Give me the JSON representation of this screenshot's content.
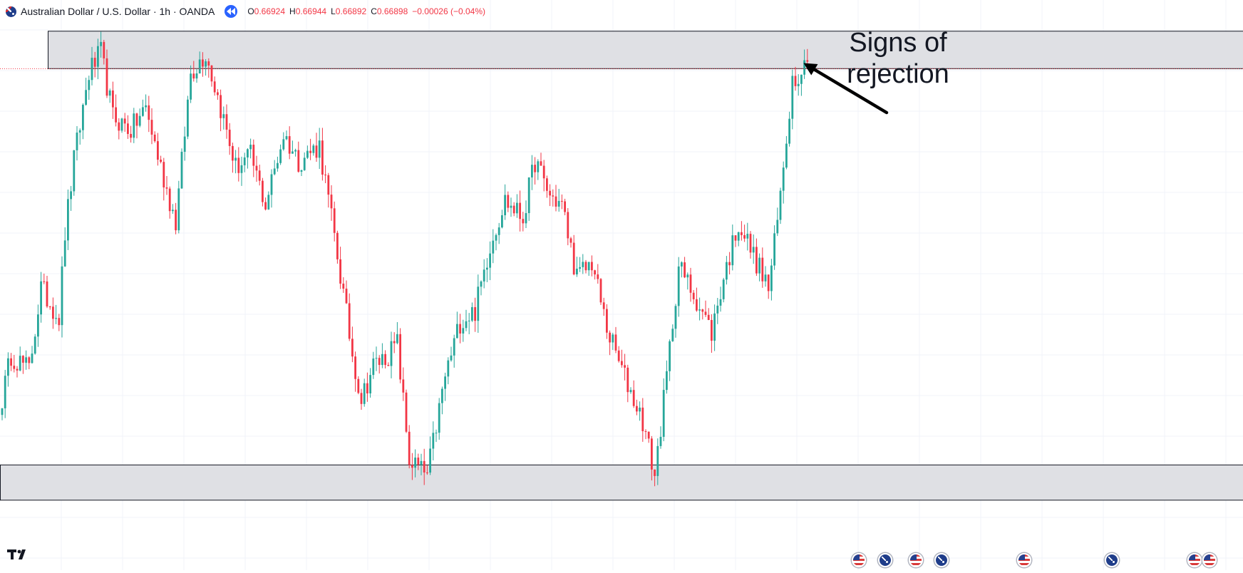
{
  "header": {
    "symbol": "Australian Dollar / U.S. Dollar · 1h · OANDA",
    "icon": "australia-flag-icon",
    "replay_icon": "replay-icon",
    "ohlc": {
      "o_label": "O",
      "o": "0.66924",
      "h_label": "H",
      "h": "0.66944",
      "l_label": "L",
      "l": "0.66892",
      "c_label": "C",
      "c": "0.66898",
      "change": "−0.00026 (−0.04%)"
    }
  },
  "annotation": {
    "line1": "Signs of",
    "line2": "rejection"
  },
  "colors": {
    "up": "#26a69a",
    "down": "#f23645",
    "zone_fill": "#dfe0e4",
    "zone_border": "#131722",
    "grid": "#f0f3fa",
    "last_price_line": "#f23645",
    "arrow": "#000000"
  },
  "chart_data": {
    "type": "candlestick",
    "title": "",
    "xlabel": "",
    "ylabel": "",
    "ylim": [
      0.6475,
      0.671
    ],
    "grid": true,
    "last_price": 0.66898,
    "zones": [
      {
        "name": "resistance",
        "low": 0.669,
        "high": 0.6707
      },
      {
        "name": "support",
        "low": 0.6494,
        "high": 0.651
      }
    ],
    "annotation_target_index": 267,
    "path": [
      [
        0,
        0.654
      ],
      [
        3,
        0.656
      ],
      [
        9,
        0.6553
      ],
      [
        13,
        0.659
      ],
      [
        19,
        0.6577
      ],
      [
        21,
        0.6615
      ],
      [
        24,
        0.6648
      ],
      [
        29,
        0.6688
      ],
      [
        33,
        0.6697
      ],
      [
        37,
        0.6668
      ],
      [
        43,
        0.6662
      ],
      [
        48,
        0.6672
      ],
      [
        53,
        0.6645
      ],
      [
        58,
        0.662
      ],
      [
        63,
        0.6688
      ],
      [
        68,
        0.6697
      ],
      [
        73,
        0.6672
      ],
      [
        78,
        0.6645
      ],
      [
        83,
        0.665
      ],
      [
        88,
        0.6628
      ],
      [
        94,
        0.666
      ],
      [
        99,
        0.6648
      ],
      [
        106,
        0.6655
      ],
      [
        112,
        0.6605
      ],
      [
        117,
        0.656
      ],
      [
        120,
        0.654
      ],
      [
        124,
        0.6555
      ],
      [
        129,
        0.656
      ],
      [
        132,
        0.6565
      ],
      [
        136,
        0.6512
      ],
      [
        142,
        0.6505
      ],
      [
        148,
        0.655
      ],
      [
        153,
        0.6575
      ],
      [
        158,
        0.658
      ],
      [
        163,
        0.661
      ],
      [
        168,
        0.663
      ],
      [
        174,
        0.6622
      ],
      [
        178,
        0.6648
      ],
      [
        183,
        0.6632
      ],
      [
        187,
        0.6628
      ],
      [
        192,
        0.6595
      ],
      [
        197,
        0.6602
      ],
      [
        202,
        0.6572
      ],
      [
        207,
        0.6553
      ],
      [
        214,
        0.653
      ],
      [
        218,
        0.6505
      ],
      [
        222,
        0.655
      ],
      [
        226,
        0.66
      ],
      [
        232,
        0.6585
      ],
      [
        237,
        0.657
      ],
      [
        241,
        0.6595
      ],
      [
        246,
        0.662
      ],
      [
        251,
        0.6605
      ],
      [
        256,
        0.659
      ],
      [
        259,
        0.662
      ],
      [
        264,
        0.6685
      ],
      [
        267,
        0.669
      ],
      [
        269,
        0.6693
      ]
    ]
  },
  "footer": {
    "logo": "tradingview-logo-icon",
    "events": [
      {
        "icon": "us-flag-event-icon",
        "type": "us"
      },
      {
        "icon": "australia-flag-event-icon",
        "type": "au"
      },
      {
        "icon": "us-flag-event-icon",
        "type": "us"
      },
      {
        "icon": "australia-flag-event-icon",
        "type": "au"
      },
      {
        "icon": "us-flag-event-icon",
        "type": "us"
      },
      {
        "icon": "australia-flag-event-icon",
        "type": "au"
      },
      {
        "icon": "us-flag-event-icon",
        "type": "us"
      },
      {
        "icon": "us-flag-event-icon",
        "type": "us"
      }
    ]
  }
}
